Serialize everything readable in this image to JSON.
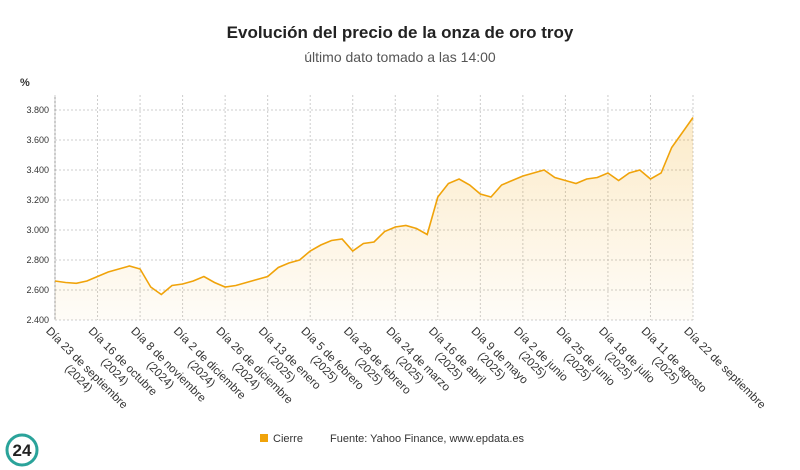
{
  "chart_data": {
    "type": "line",
    "title": "Evolución del precio de la onza de oro troy",
    "subtitle": "último dato tomado a las 14:00",
    "y_unit": "%",
    "categories": [
      "Día 23 de septiembre (2024)",
      null,
      null,
      null,
      "Día 16 de octubre (2024)",
      null,
      null,
      null,
      "Día 8 de noviembre (2024)",
      null,
      null,
      null,
      "Día 2 de diciembre (2024)",
      null,
      null,
      null,
      "Día 26 de diciembre (2024)",
      null,
      null,
      null,
      "Día 13 de enero (2025)",
      null,
      null,
      null,
      "Día 5 de febrero (2025)",
      null,
      null,
      null,
      "Día 28 de febrero (2025)",
      null,
      null,
      null,
      "Día 24 de marzo (2025)",
      null,
      null,
      null,
      "Día 16 de abril (2025)",
      null,
      null,
      null,
      "Día 9 de mayo (2025)",
      null,
      null,
      null,
      "Día 2 de junio (2025)",
      null,
      null,
      null,
      "Día 25 de junio (2025)",
      null,
      null,
      null,
      "Día 18 de julio (2025)",
      null,
      null,
      null,
      "Día 11 de agosto (2025)",
      null,
      null,
      null,
      "Día 22 de septiembre"
    ],
    "series": [
      {
        "name": "Cierre",
        "color": "#f0a30a",
        "values": [
          2660,
          2650,
          2645,
          2660,
          2690,
          2720,
          2740,
          2760,
          2740,
          2620,
          2570,
          2630,
          2640,
          2660,
          2690,
          2650,
          2620,
          2630,
          2650,
          2670,
          2690,
          2750,
          2780,
          2800,
          2860,
          2900,
          2930,
          2940,
          2860,
          2910,
          2920,
          2990,
          3020,
          3030,
          3010,
          2970,
          3220,
          3310,
          3340,
          3300,
          3240,
          3220,
          3300,
          3330,
          3360,
          3380,
          3400,
          3350,
          3330,
          3310,
          3340,
          3350,
          3380,
          3330,
          3380,
          3400,
          3340,
          3380,
          3550,
          3650,
          3750
        ]
      }
    ],
    "ylim": [
      2400,
      3900
    ],
    "yticks": [
      {
        "value": 2400,
        "label": "2.400"
      },
      {
        "value": 2600,
        "label": "2.600"
      },
      {
        "value": 2800,
        "label": "2.800"
      },
      {
        "value": 3000,
        "label": "3.000"
      },
      {
        "value": 3200,
        "label": "3.200"
      },
      {
        "value": 3400,
        "label": "3.400"
      },
      {
        "value": 3600,
        "label": "3.600"
      },
      {
        "value": 3800,
        "label": "3.800"
      }
    ],
    "grid": true,
    "source": "Fuente: Yahoo Finance, www.epdata.es",
    "logo": "24"
  }
}
